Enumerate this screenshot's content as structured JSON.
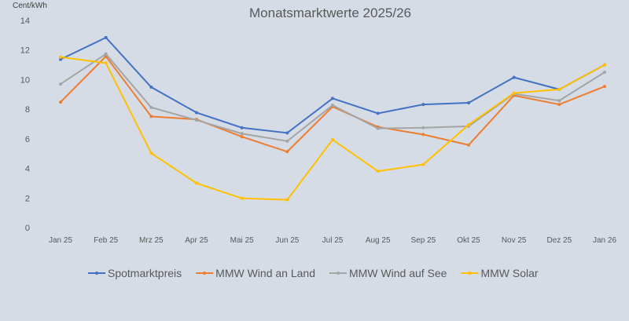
{
  "chart_data": {
    "type": "line",
    "title": "Monatsmarktwerte 2025/26",
    "ylabel": "Cent/kWh",
    "xlabel": "",
    "ylim": [
      0,
      14
    ],
    "yticks": [
      "0",
      "2",
      "4",
      "6",
      "8",
      "10",
      "12",
      "14"
    ],
    "grid": false,
    "legend": "bottom",
    "categories": [
      "Jan 25",
      "Feb 25",
      "Mrz 25",
      "Apr 25",
      "Mai 25",
      "Jun 25",
      "Jul 25",
      "Aug 25",
      "Sep 25",
      "Okt 25",
      "Nov 25",
      "Dez 25",
      "Jan 26"
    ],
    "series": [
      {
        "name": "Spotmarktpreis",
        "color": "#4472c4",
        "values": [
          11.37,
          12.84,
          9.49,
          7.77,
          6.75,
          6.4,
          8.73,
          7.72,
          8.32,
          8.43,
          10.15,
          9.34,
          11.0
        ]
      },
      {
        "name": "MMW Wind an Land",
        "color": "#ed7d31",
        "values": [
          8.48,
          11.57,
          7.51,
          7.31,
          6.14,
          5.13,
          8.17,
          6.8,
          6.29,
          5.58,
          8.93,
          8.32,
          9.54
        ]
      },
      {
        "name": "MMW Wind auf See",
        "color": "#a5a5a5",
        "values": [
          9.7,
          11.73,
          8.12,
          7.26,
          6.35,
          5.84,
          8.27,
          6.7,
          6.75,
          6.85,
          9.04,
          8.58,
          10.5
        ]
      },
      {
        "name": "MMW Solar",
        "color": "#ffc000",
        "values": [
          11.52,
          11.12,
          5.03,
          3.0,
          1.98,
          1.88,
          5.94,
          3.81,
          4.26,
          6.95,
          9.09,
          9.34,
          11.0
        ]
      }
    ]
  }
}
